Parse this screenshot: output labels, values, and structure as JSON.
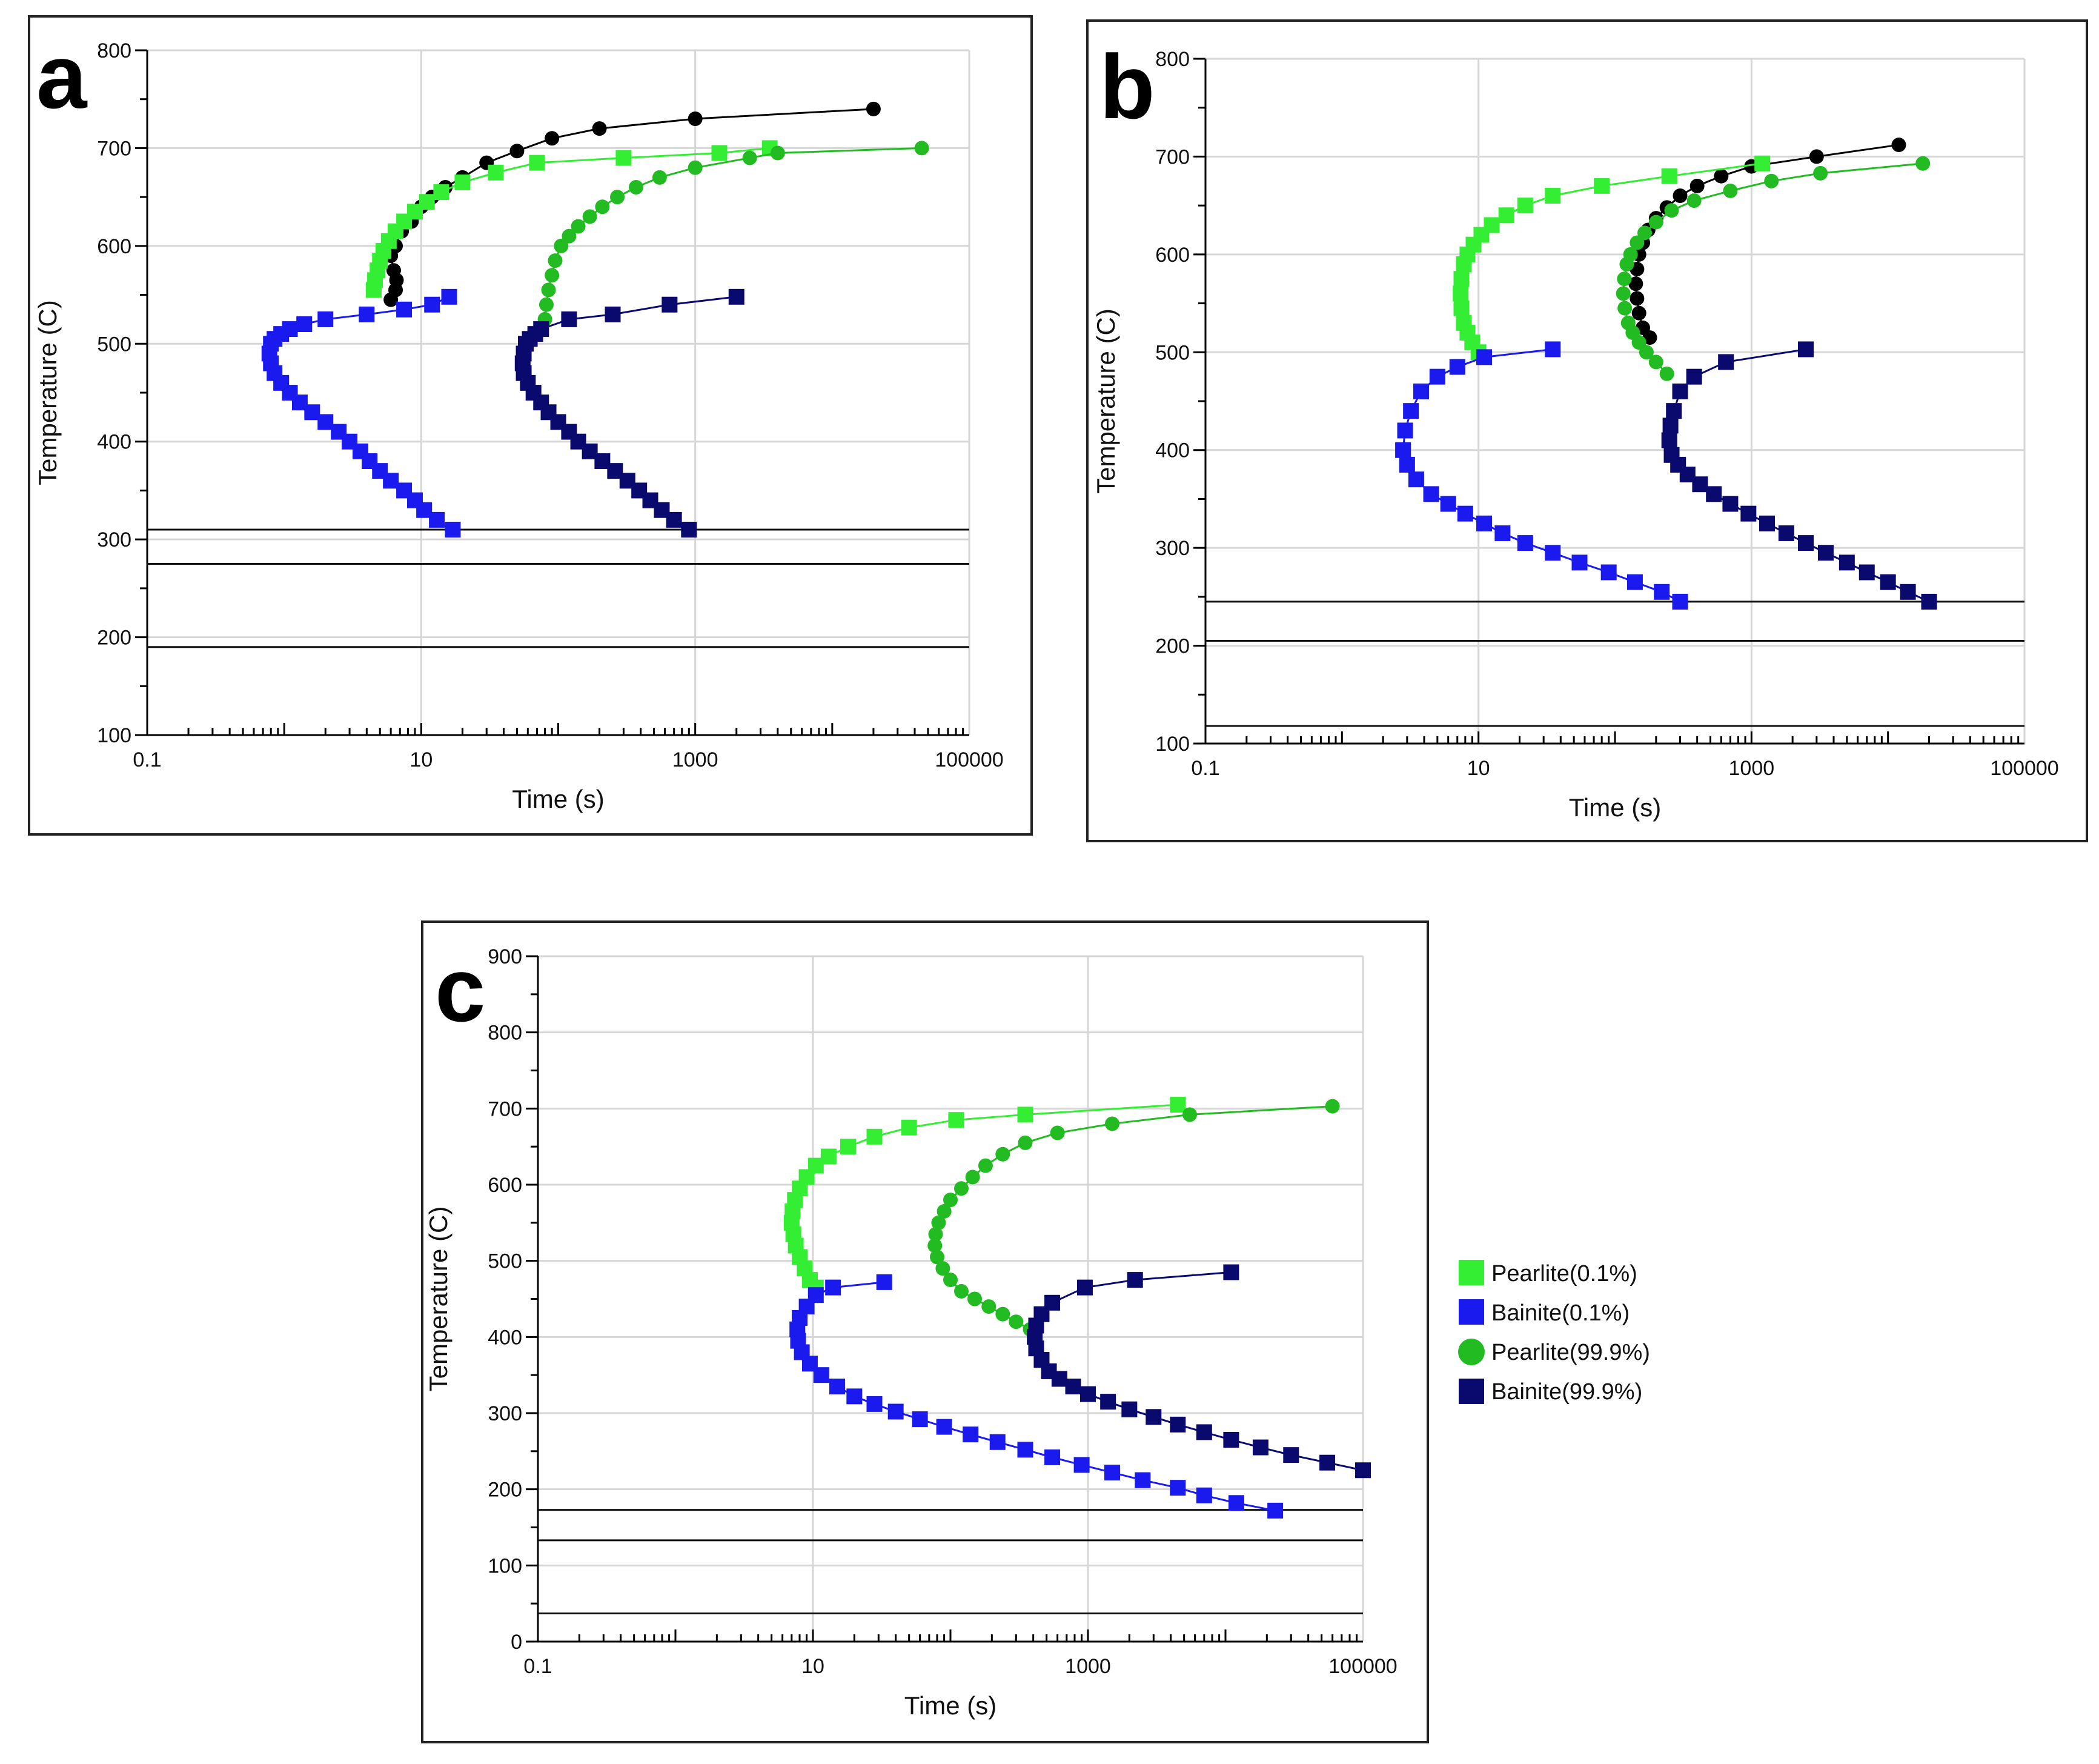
{
  "legend": {
    "items": [
      {
        "label": "Pearlite(0.1%)",
        "marker": "square",
        "color": "#33ee33"
      },
      {
        "label": "Bainite(0.1%)",
        "marker": "square",
        "color": "#1a1aee"
      },
      {
        "label": "Pearlite(99.9%)",
        "marker": "circle",
        "color": "#22bb22"
      },
      {
        "label": "Bainite(99.9%)",
        "marker": "square",
        "color": "#0a0a6e"
      }
    ]
  },
  "colors": {
    "pearlite_start": "#33ee33",
    "bainite_start": "#1a1aee",
    "pearlite_finish": "#22bb22",
    "bainite_finish": "#0a0a6e",
    "extra_curve": "#000000",
    "grid": "#d6d6d6"
  },
  "chart_data": [
    {
      "panel": "a",
      "type": "line",
      "xscale": "log",
      "xlabel": "Time (s)",
      "ylabel": "Temperature (C)",
      "xlim": [
        0.1,
        100000
      ],
      "ylim": [
        100,
        800
      ],
      "xticks": [
        "0.1",
        "10",
        "1000",
        "100000"
      ],
      "yticks": [
        "100",
        "200",
        "300",
        "400",
        "500",
        "600",
        "700",
        "800"
      ],
      "hlines": [
        310,
        275,
        190
      ],
      "series": [
        {
          "name": "black",
          "marker": "circle",
          "color": "#000000",
          "t": [
            6.0,
            6.5,
            6.6,
            6.3,
            6.0,
            6.5,
            7.2,
            8.5,
            10,
            12,
            15,
            20,
            30,
            50,
            90,
            200,
            1000,
            20000
          ],
          "T": [
            545,
            555,
            565,
            575,
            590,
            600,
            615,
            625,
            640,
            650,
            660,
            670,
            685,
            697,
            710,
            720,
            730,
            740
          ]
        },
        {
          "name": "Pearlite(0.1%)",
          "marker": "square",
          "color": "#33ee33",
          "t": [
            4.5,
            4.6,
            4.8,
            5.0,
            5.3,
            5.8,
            6.5,
            7.5,
            9,
            11,
            14,
            20,
            35,
            70,
            300,
            1500,
            3500
          ],
          "T": [
            555,
            565,
            575,
            585,
            595,
            605,
            615,
            625,
            635,
            645,
            655,
            665,
            675,
            685,
            690,
            695,
            700
          ]
        },
        {
          "name": "Pearlite(99.9%)",
          "marker": "circle",
          "color": "#22bb22",
          "t": [
            80,
            82,
            85,
            90,
            95,
            105,
            120,
            140,
            170,
            210,
            270,
            370,
            550,
            1000,
            2500,
            4000,
            45000
          ],
          "T": [
            525,
            540,
            555,
            570,
            585,
            600,
            610,
            620,
            630,
            640,
            650,
            660,
            670,
            680,
            690,
            695,
            700
          ]
        },
        {
          "name": "Bainite(0.1%)",
          "marker": "square",
          "color": "#1a1aee",
          "t": [
            17,
            13,
            10.5,
            9,
            7.5,
            6,
            5,
            4.2,
            3.6,
            3.0,
            2.5,
            2.0,
            1.6,
            1.3,
            1.1,
            0.95,
            0.85,
            0.8,
            0.78,
            0.8,
            0.85,
            0.95,
            1.1,
            1.4,
            2.0,
            4.0,
            7.5,
            12,
            16
          ],
          "T": [
            310,
            320,
            330,
            340,
            350,
            360,
            370,
            380,
            390,
            400,
            410,
            420,
            430,
            440,
            450,
            460,
            470,
            480,
            490,
            500,
            505,
            510,
            515,
            520,
            525,
            530,
            535,
            540,
            548
          ]
        },
        {
          "name": "Bainite(99.9%)",
          "marker": "square",
          "color": "#0a0a6e",
          "t": [
            900,
            700,
            570,
            470,
            390,
            320,
            260,
            210,
            170,
            140,
            120,
            100,
            85,
            75,
            66,
            60,
            56,
            55,
            56,
            58,
            62,
            68,
            75,
            120,
            250,
            650,
            2000
          ],
          "T": [
            310,
            320,
            330,
            340,
            350,
            360,
            370,
            380,
            390,
            400,
            410,
            420,
            430,
            440,
            450,
            460,
            470,
            480,
            490,
            500,
            505,
            510,
            515,
            525,
            530,
            540,
            548
          ]
        }
      ]
    },
    {
      "panel": "b",
      "type": "line",
      "xscale": "log",
      "xlabel": "Time (s)",
      "ylabel": "Temperature (C)",
      "xlim": [
        0.1,
        100000
      ],
      "ylim": [
        100,
        800
      ],
      "xticks": [
        "0.1",
        "10",
        "1000",
        "100000"
      ],
      "yticks": [
        "100",
        "200",
        "300",
        "400",
        "500",
        "600",
        "700",
        "800"
      ],
      "hlines": [
        245,
        205,
        118
      ],
      "series": [
        {
          "name": "black",
          "marker": "circle",
          "color": "#000000",
          "t": [
            180,
            160,
            150,
            145,
            142,
            145,
            150,
            160,
            175,
            200,
            240,
            300,
            400,
            600,
            1000,
            3000,
            12000
          ],
          "T": [
            515,
            525,
            540,
            555,
            570,
            585,
            600,
            612,
            625,
            637,
            648,
            660,
            670,
            680,
            690,
            700,
            712
          ]
        },
        {
          "name": "Pearlite(0.1%)",
          "marker": "square",
          "color": "#33ee33",
          "t": [
            10,
            9.0,
            8.3,
            7.8,
            7.5,
            7.4,
            7.5,
            7.8,
            8.3,
            9.2,
            10.5,
            12.5,
            16,
            22,
            35,
            80,
            250,
            1200
          ],
          "T": [
            500,
            510,
            520,
            530,
            545,
            560,
            575,
            590,
            600,
            610,
            620,
            630,
            640,
            650,
            660,
            670,
            680,
            693
          ]
        },
        {
          "name": "Pearlite(99.9%)",
          "marker": "circle",
          "color": "#22bb22",
          "t": [
            240,
            200,
            170,
            150,
            135,
            125,
            118,
            115,
            117,
            122,
            130,
            145,
            165,
            200,
            260,
            380,
            700,
            1400,
            3200,
            18000
          ],
          "T": [
            478,
            490,
            500,
            510,
            520,
            530,
            545,
            560,
            575,
            590,
            600,
            612,
            622,
            633,
            645,
            655,
            665,
            675,
            683,
            693
          ]
        },
        {
          "name": "Bainite(0.1%)",
          "marker": "square",
          "color": "#1a1aee",
          "t": [
            300,
            220,
            140,
            90,
            55,
            35,
            22,
            15,
            11,
            8,
            6,
            4.5,
            3.5,
            3.0,
            2.8,
            2.9,
            3.2,
            3.8,
            5,
            7,
            11,
            35
          ],
          "T": [
            245,
            255,
            265,
            275,
            285,
            295,
            305,
            315,
            325,
            335,
            345,
            355,
            370,
            385,
            400,
            420,
            440,
            460,
            475,
            485,
            495,
            503
          ]
        },
        {
          "name": "Bainite(99.9%)",
          "marker": "square",
          "color": "#0a0a6e",
          "t": [
            20000,
            14000,
            10000,
            7000,
            5000,
            3500,
            2500,
            1800,
            1300,
            950,
            700,
            530,
            420,
            340,
            290,
            260,
            250,
            255,
            270,
            300,
            380,
            650,
            2500
          ],
          "T": [
            245,
            255,
            265,
            275,
            285,
            295,
            305,
            315,
            325,
            335,
            345,
            355,
            365,
            375,
            385,
            395,
            410,
            425,
            440,
            460,
            475,
            490,
            503
          ]
        }
      ]
    },
    {
      "panel": "c",
      "type": "line",
      "xscale": "log",
      "xlabel": "Time (s)",
      "ylabel": "Temperature (C)",
      "xlim": [
        0.1,
        100000
      ],
      "ylim": [
        0,
        900
      ],
      "xticks": [
        "0.1",
        "10",
        "1000",
        "100000"
      ],
      "yticks": [
        "0",
        "100",
        "200",
        "300",
        "400",
        "500",
        "600",
        "700",
        "800",
        "900"
      ],
      "hlines": [
        173,
        133,
        37
      ],
      "series": [
        {
          "name": "Pearlite(0.1%)",
          "marker": "square",
          "color": "#33ee33",
          "t": [
            10.5,
            9.5,
            8.7,
            8.0,
            7.5,
            7.2,
            7.0,
            7.1,
            7.4,
            8.0,
            9.0,
            10.5,
            13,
            18,
            28,
            50,
            110,
            350,
            4500
          ],
          "T": [
            465,
            475,
            490,
            505,
            520,
            535,
            550,
            565,
            580,
            595,
            610,
            625,
            637,
            650,
            663,
            675,
            685,
            692,
            705
          ]
        },
        {
          "name": "Pearlite(99.9%)",
          "marker": "circle",
          "color": "#22bb22",
          "t": [
            380,
            300,
            240,
            190,
            150,
            120,
            100,
            88,
            80,
            77,
            78,
            82,
            90,
            100,
            120,
            145,
            180,
            240,
            350,
            600,
            1500,
            5500,
            60000
          ],
          "T": [
            410,
            420,
            430,
            440,
            450,
            460,
            475,
            490,
            505,
            520,
            535,
            550,
            565,
            580,
            595,
            610,
            625,
            640,
            655,
            668,
            680,
            692,
            703
          ]
        },
        {
          "name": "Bainite(0.1%)",
          "marker": "square",
          "color": "#1a1aee",
          "t": [
            23000,
            12000,
            7000,
            4500,
            2500,
            1500,
            900,
            550,
            350,
            220,
            140,
            90,
            60,
            40,
            28,
            20,
            15,
            11.5,
            9.5,
            8.3,
            7.8,
            7.7,
            8.0,
            9.0,
            10.5,
            14,
            33
          ],
          "T": [
            172,
            182,
            192,
            202,
            212,
            222,
            232,
            242,
            252,
            262,
            272,
            282,
            292,
            302,
            312,
            322,
            335,
            350,
            365,
            380,
            395,
            410,
            425,
            440,
            455,
            465,
            472
          ]
        },
        {
          "name": "Bainite(99.9%)",
          "marker": "square",
          "color": "#0a0a6e",
          "t": [
            100000,
            55000,
            30000,
            18000,
            11000,
            7000,
            4500,
            3000,
            2000,
            1400,
            1000,
            780,
            620,
            520,
            460,
            420,
            410,
            420,
            460,
            550,
            950,
            2200,
            11000
          ],
          "T": [
            225,
            235,
            245,
            255,
            265,
            275,
            285,
            295,
            305,
            315,
            325,
            335,
            345,
            355,
            370,
            385,
            400,
            415,
            430,
            445,
            465,
            475,
            485
          ]
        }
      ]
    }
  ],
  "panels": {
    "a": {
      "letter": "a"
    },
    "b": {
      "letter": "b"
    },
    "c": {
      "letter": "c"
    }
  }
}
